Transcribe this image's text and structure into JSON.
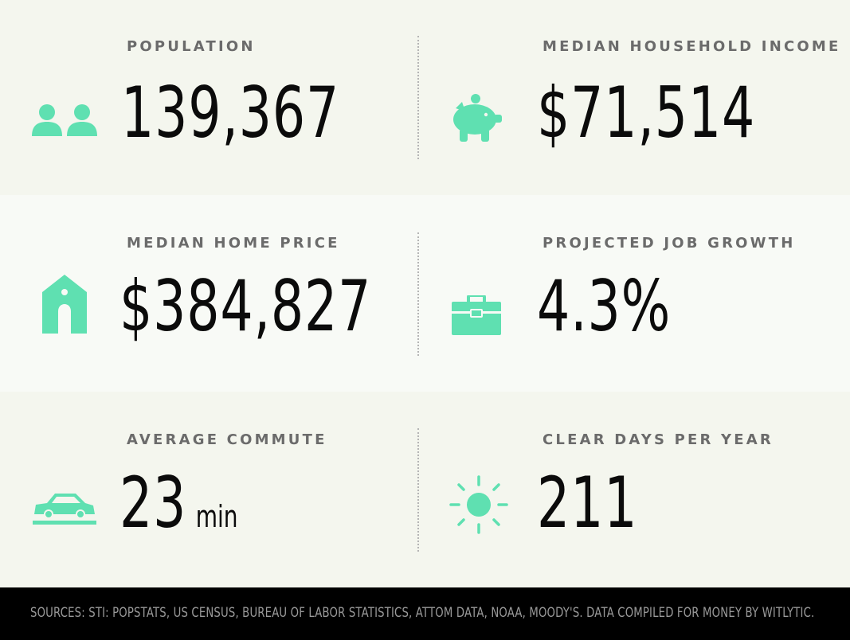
{
  "accent_color": "#5fe0b1",
  "stats": {
    "population": {
      "label": "POPULATION",
      "value": "139,367",
      "icon": "people-icon"
    },
    "income": {
      "label": "MEDIAN HOUSEHOLD INCOME",
      "value": "$71,514",
      "icon": "piggy-bank-icon"
    },
    "home_price": {
      "label": "MEDIAN HOME PRICE",
      "value": "$384,827",
      "icon": "house-icon"
    },
    "job_growth": {
      "label": "PROJECTED JOB GROWTH",
      "value": "4.3%",
      "icon": "briefcase-icon"
    },
    "commute": {
      "label": "AVERAGE COMMUTE",
      "value": "23",
      "unit": "min",
      "icon": "car-icon"
    },
    "clear_days": {
      "label": "CLEAR DAYS PER YEAR",
      "value": "211",
      "icon": "sun-icon"
    }
  },
  "footer": {
    "sources": "SOURCES: STI: POPSTATS, US CENSUS, BUREAU OF LABOR STATISTICS, ATTOM DATA, NOAA, MOODY'S. DATA COMPILED FOR MONEY BY WITLYTIC."
  }
}
